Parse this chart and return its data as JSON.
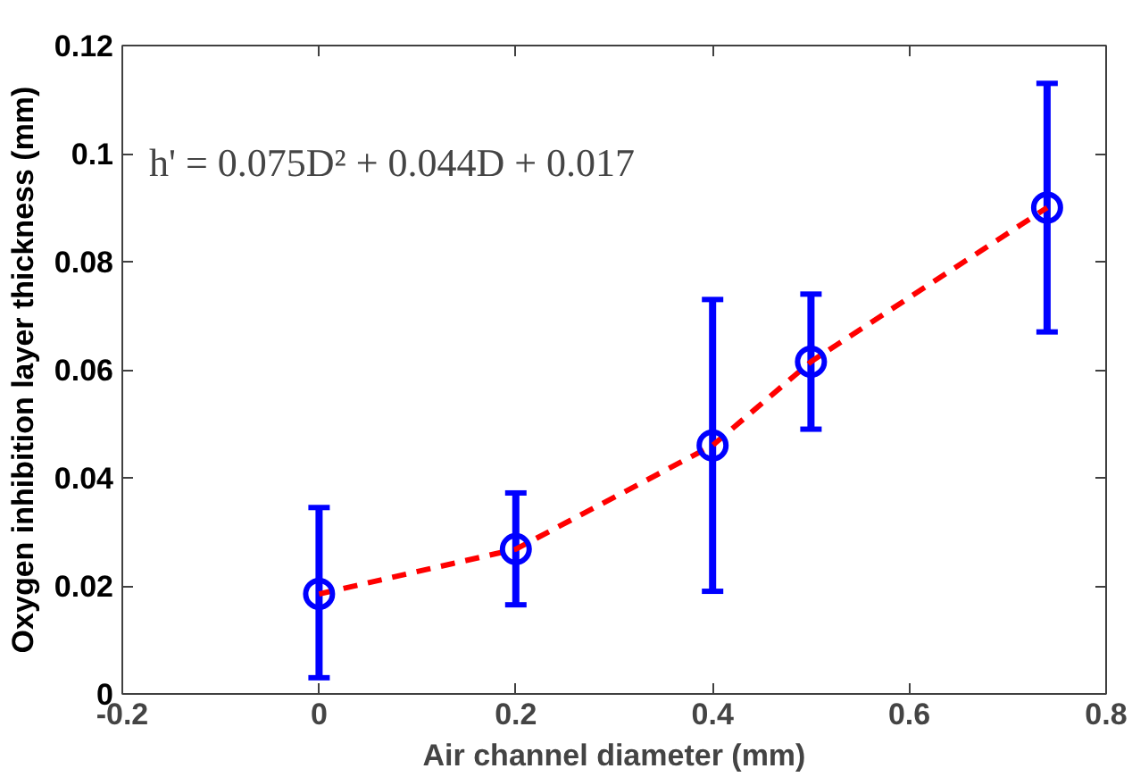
{
  "chart_data": {
    "type": "scatter",
    "xlabel": "Air channel diameter (mm)",
    "ylabel": "Oxygen inhibition layer thickness (mm)",
    "x": [
      0,
      0.2,
      0.4,
      0.5,
      0.74
    ],
    "series": [
      {
        "type": "line",
        "color": "#ff0000",
        "line_style": "dashed",
        "marker": "none",
        "values": [
          0.0185,
          0.0268,
          0.046,
          0.0615,
          0.09
        ]
      },
      {
        "color": "#0000ff",
        "marker": "circle",
        "values": [
          0.0185,
          0.0268,
          0.046,
          0.0615,
          0.09
        ],
        "errors": [
          [
            0.003,
            0.0345
          ],
          [
            0.0165,
            0.0372
          ],
          [
            0.019,
            0.073
          ],
          [
            0.049,
            0.074
          ],
          [
            0.067,
            0.113
          ]
        ]
      }
    ],
    "xlim": [
      -0.2,
      0.8
    ],
    "ylim": [
      0,
      0.12
    ],
    "xticks": [
      -0.2,
      0,
      0.2,
      0.4,
      0.6,
      0.8
    ],
    "yticks": [
      0,
      0.02,
      0.04,
      0.06,
      0.08,
      0.1,
      0.12
    ],
    "annotations": [
      "h' = 0.075D² + 0.044D + 0.017"
    ],
    "grid": false
  }
}
